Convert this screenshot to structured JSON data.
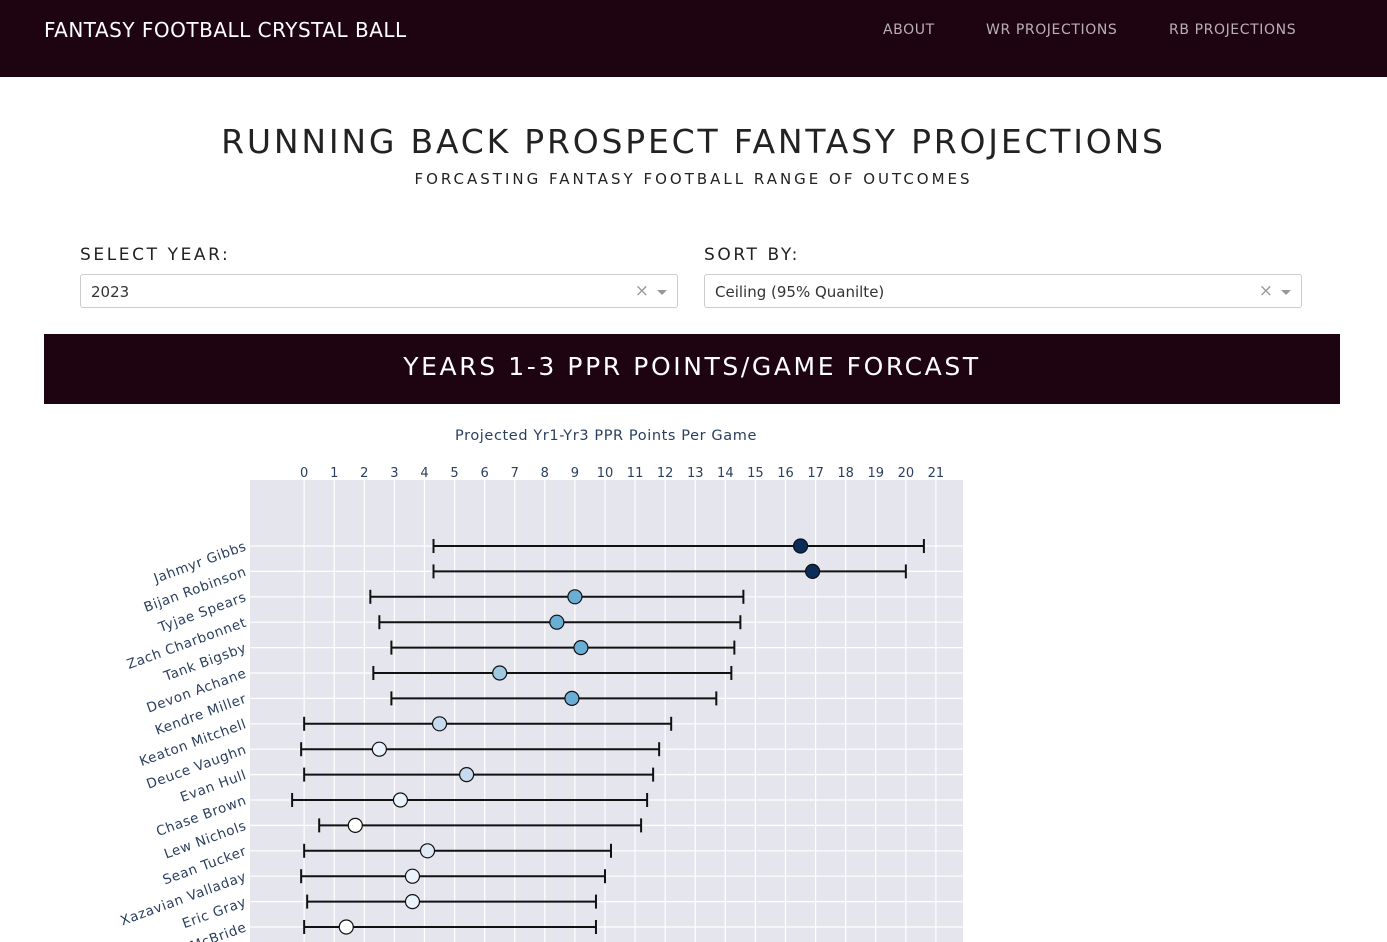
{
  "navbar": {
    "brand": "FANTASY FOOTBALL CRYSTAL BALL",
    "links": [
      "ABOUT",
      "WR PROJECTIONS",
      "RB PROJECTIONS"
    ]
  },
  "header": {
    "title": "RUNNING BACK PROSPECT FANTASY PROJECTIONS",
    "subtitle": "FORCASTING FANTASY FOOTBALL RANGE OF OUTCOMES"
  },
  "controls": {
    "year": {
      "label": "SELECT YEAR:",
      "value": "2023",
      "clear": "×"
    },
    "sort": {
      "label": "SORT BY:",
      "value": "Ceiling (95% Quanilte)",
      "clear": "×"
    }
  },
  "banner": {
    "title": "YEARS 1-3 PPR POINTS/GAME FORCAST"
  },
  "colors": {
    "nav_bg": "#1e0411",
    "plot_bg": "#e5e5ee",
    "marker_dark": "#0a2d5c",
    "marker_mid": "#6aaed6",
    "marker_light": "#c6dbef",
    "marker_pale": "#eaf2fb"
  },
  "chart_data": {
    "type": "scatter",
    "title": "Projected Yr1-Yr3 PPR Points Per Game",
    "x_ticks": [
      0,
      1,
      2,
      3,
      4,
      5,
      6,
      7,
      8,
      9,
      10,
      11,
      12,
      13,
      14,
      15,
      16,
      17,
      18,
      19,
      20,
      21
    ],
    "xlim": [
      -1.8,
      21.9
    ],
    "x_axis_position": "top",
    "grid": true,
    "series": [
      {
        "player": "Jahmyr Gibbs",
        "low": 4.3,
        "projection": 16.5,
        "high": 20.6,
        "marker_color": "#0a2d5c"
      },
      {
        "player": "Bijan Robinson",
        "low": 4.3,
        "projection": 16.9,
        "high": 20.0,
        "marker_color": "#0a2d5c"
      },
      {
        "player": "Tyjae Spears",
        "low": 2.2,
        "projection": 9.0,
        "high": 14.6,
        "marker_color": "#6aaed6"
      },
      {
        "player": "Zach Charbonnet",
        "low": 2.5,
        "projection": 8.4,
        "high": 14.5,
        "marker_color": "#6aaed6"
      },
      {
        "player": "Tank Bigsby",
        "low": 2.9,
        "projection": 9.2,
        "high": 14.3,
        "marker_color": "#6aaed6"
      },
      {
        "player": "Devon Achane",
        "low": 2.3,
        "projection": 6.5,
        "high": 14.2,
        "marker_color": "#9ecae1"
      },
      {
        "player": "Kendre Miller",
        "low": 2.9,
        "projection": 8.9,
        "high": 13.7,
        "marker_color": "#6aaed6"
      },
      {
        "player": "Keaton Mitchell",
        "low": 0.0,
        "projection": 4.5,
        "high": 12.2,
        "marker_color": "#c6dbef"
      },
      {
        "player": "Deuce Vaughn",
        "low": -0.1,
        "projection": 2.5,
        "high": 11.8,
        "marker_color": "#eaf2fb"
      },
      {
        "player": "Evan Hull",
        "low": 0.0,
        "projection": 5.4,
        "high": 11.6,
        "marker_color": "#c6dbef"
      },
      {
        "player": "Chase Brown",
        "low": -0.4,
        "projection": 3.2,
        "high": 11.4,
        "marker_color": "#eaf2fb"
      },
      {
        "player": "Lew Nichols",
        "low": 0.5,
        "projection": 1.7,
        "high": 11.2,
        "marker_color": "#ffffff"
      },
      {
        "player": "Sean Tucker",
        "low": 0.0,
        "projection": 4.1,
        "high": 10.2,
        "marker_color": "#deebf7"
      },
      {
        "player": "Xazavian Valladay",
        "low": -0.1,
        "projection": 3.6,
        "high": 10.0,
        "marker_color": "#eaf2fb"
      },
      {
        "player": "Eric Gray",
        "low": 0.1,
        "projection": 3.6,
        "high": 9.7,
        "marker_color": "#eaf2fb"
      },
      {
        "player": "McBride",
        "low": 0.0,
        "projection": 1.4,
        "high": 9.7,
        "marker_color": "#ffffff"
      }
    ]
  }
}
